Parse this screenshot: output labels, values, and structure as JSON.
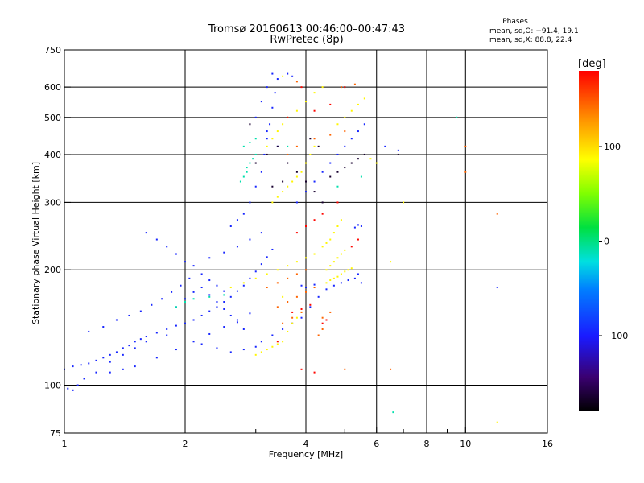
{
  "chart_data": {
    "type": "scatter",
    "title": "Tromsø 20160613 00:46:00–00:47:43",
    "subtitle": "RwPretec (8p)",
    "xlabel": "Frequency [MHz]",
    "ylabel": "Stationary phase Virtual Height [km]",
    "x_scale": "log",
    "y_scale": "log",
    "xlim": [
      1,
      16
    ],
    "ylim": [
      75,
      750
    ],
    "x_ticks": [
      1,
      2,
      4,
      6,
      8,
      10,
      16
    ],
    "x_tick_labels": [
      "1",
      "2",
      "4",
      "6",
      "8",
      "10",
      "16"
    ],
    "x_minor_ticks": [
      3,
      5,
      7,
      9
    ],
    "y_ticks": [
      75,
      100,
      200,
      300,
      400,
      500,
      600,
      750
    ],
    "y_tick_labels": [
      "75",
      "100",
      "200",
      "300",
      "400",
      "500",
      "600",
      "750"
    ],
    "grid": true,
    "stats": {
      "heading": "Phases",
      "line_o": "mean, sd,O: −91.4, 19.1",
      "line_x": "mean, sd,X: 88.8, 22.4"
    },
    "colorbar": {
      "label": "[deg]",
      "range": [
        -180,
        180
      ],
      "ticks": [
        100,
        0,
        -100
      ],
      "tick_labels": [
        "100",
        "0",
        "−100"
      ]
    },
    "series": [
      {
        "phase_deg": -95,
        "points": [
          [
            1.0,
            110
          ],
          [
            1.05,
            112
          ],
          [
            1.1,
            113
          ],
          [
            1.15,
            114
          ],
          [
            1.2,
            116
          ],
          [
            1.25,
            118
          ],
          [
            1.3,
            120
          ],
          [
            1.35,
            122
          ],
          [
            1.4,
            125
          ],
          [
            1.45,
            127
          ],
          [
            1.5,
            130
          ],
          [
            1.55,
            132
          ],
          [
            1.6,
            134
          ],
          [
            1.7,
            137
          ],
          [
            1.8,
            140
          ],
          [
            1.9,
            143
          ],
          [
            2.0,
            145
          ],
          [
            2.1,
            148
          ],
          [
            2.2,
            152
          ],
          [
            2.3,
            156
          ],
          [
            2.4,
            160
          ],
          [
            2.5,
            165
          ],
          [
            2.6,
            170
          ],
          [
            2.7,
            176
          ],
          [
            2.8,
            182
          ],
          [
            2.9,
            190
          ],
          [
            3.0,
            198
          ],
          [
            3.1,
            207
          ],
          [
            3.2,
            216
          ],
          [
            3.3,
            226
          ],
          [
            1.02,
            98
          ],
          [
            1.05,
            97
          ],
          [
            1.08,
            100
          ],
          [
            1.12,
            104
          ],
          [
            1.2,
            108
          ],
          [
            1.3,
            115
          ],
          [
            1.4,
            120
          ],
          [
            1.5,
            125
          ],
          [
            1.6,
            130
          ],
          [
            1.8,
            135
          ],
          [
            1.15,
            138
          ],
          [
            1.25,
            142
          ],
          [
            1.35,
            148
          ],
          [
            1.45,
            152
          ],
          [
            1.55,
            156
          ],
          [
            1.65,
            162
          ],
          [
            1.75,
            168
          ],
          [
            1.85,
            175
          ],
          [
            1.95,
            182
          ],
          [
            2.05,
            190
          ],
          [
            1.6,
            250
          ],
          [
            1.7,
            240
          ],
          [
            1.8,
            230
          ],
          [
            1.9,
            220
          ],
          [
            2.0,
            210
          ],
          [
            2.1,
            205
          ],
          [
            2.2,
            195
          ],
          [
            2.3,
            188
          ],
          [
            2.4,
            182
          ],
          [
            2.5,
            176
          ],
          [
            2.6,
            260
          ],
          [
            2.7,
            270
          ],
          [
            2.8,
            280
          ],
          [
            2.9,
            300
          ],
          [
            3.0,
            330
          ],
          [
            3.1,
            360
          ],
          [
            3.15,
            400
          ],
          [
            3.2,
            440
          ],
          [
            3.25,
            480
          ],
          [
            3.3,
            530
          ],
          [
            3.35,
            580
          ],
          [
            3.4,
            630
          ],
          [
            3.3,
            650
          ],
          [
            3.2,
            600
          ],
          [
            3.1,
            550
          ],
          [
            3.0,
            500
          ],
          [
            3.2,
            460
          ],
          [
            3.4,
            420
          ],
          [
            3.6,
            650
          ],
          [
            3.7,
            640
          ],
          [
            3.1,
            130
          ],
          [
            3.3,
            135
          ],
          [
            3.5,
            140
          ],
          [
            3.7,
            145
          ],
          [
            3.9,
            150
          ],
          [
            4.1,
            160
          ],
          [
            4.3,
            170
          ],
          [
            4.5,
            178
          ],
          [
            4.7,
            182
          ],
          [
            4.9,
            185
          ],
          [
            5.1,
            188
          ],
          [
            5.3,
            190
          ],
          [
            5.4,
            195
          ],
          [
            5.5,
            185
          ],
          [
            5.5,
            260
          ],
          [
            5.4,
            262
          ],
          [
            5.3,
            258
          ],
          [
            4.0,
            180
          ],
          [
            3.9,
            182
          ],
          [
            4.2,
            183
          ],
          [
            2.2,
            128
          ],
          [
            2.4,
            125
          ],
          [
            2.6,
            122
          ],
          [
            2.8,
            124
          ],
          [
            3.0,
            126
          ],
          [
            2.3,
            215
          ],
          [
            2.5,
            222
          ],
          [
            2.7,
            230
          ],
          [
            2.9,
            240
          ],
          [
            3.1,
            250
          ],
          [
            3.8,
            300
          ],
          [
            4.0,
            320
          ],
          [
            4.2,
            340
          ],
          [
            4.4,
            360
          ],
          [
            4.6,
            380
          ],
          [
            4.8,
            400
          ],
          [
            5.0,
            420
          ],
          [
            5.2,
            440
          ],
          [
            5.4,
            460
          ],
          [
            5.6,
            480
          ],
          [
            1.3,
            108
          ],
          [
            1.4,
            110
          ],
          [
            1.5,
            112
          ],
          [
            1.7,
            118
          ],
          [
            1.9,
            124
          ],
          [
            2.1,
            130
          ],
          [
            2.3,
            136
          ],
          [
            2.5,
            142
          ],
          [
            2.7,
            148
          ],
          [
            2.9,
            154
          ],
          [
            1.9,
            160
          ],
          [
            2.0,
            168
          ],
          [
            2.1,
            175
          ],
          [
            2.2,
            180
          ],
          [
            2.3,
            172
          ],
          [
            2.4,
            165
          ],
          [
            2.5,
            158
          ],
          [
            2.6,
            152
          ],
          [
            2.7,
            146
          ],
          [
            2.8,
            140
          ],
          [
            12.0,
            180
          ],
          [
            6.8,
            410
          ],
          [
            6.3,
            420
          ]
        ]
      },
      {
        "phase_deg": -10,
        "points": [
          [
            2.8,
            350
          ],
          [
            2.85,
            360
          ],
          [
            2.9,
            380
          ],
          [
            2.95,
            390
          ],
          [
            3.0,
            400
          ],
          [
            2.8,
            420
          ],
          [
            2.9,
            430
          ],
          [
            3.0,
            440
          ],
          [
            2.75,
            340
          ],
          [
            2.85,
            370
          ],
          [
            1.9,
            160
          ],
          [
            2.0,
            165
          ],
          [
            2.1,
            168
          ],
          [
            2.3,
            170
          ],
          [
            2.5,
            172
          ],
          [
            9.5,
            500
          ],
          [
            6.6,
            85
          ],
          [
            5.5,
            350
          ],
          [
            4.8,
            330
          ],
          [
            3.6,
            420
          ]
        ]
      },
      {
        "phase_deg": 90,
        "points": [
          [
            3.0,
            120
          ],
          [
            3.1,
            122
          ],
          [
            3.2,
            124
          ],
          [
            3.3,
            126
          ],
          [
            3.4,
            128
          ],
          [
            3.5,
            130
          ],
          [
            3.6,
            138
          ],
          [
            3.7,
            145
          ],
          [
            3.8,
            150
          ],
          [
            3.9,
            155
          ],
          [
            4.5,
            200
          ],
          [
            4.6,
            205
          ],
          [
            4.7,
            210
          ],
          [
            4.8,
            215
          ],
          [
            4.9,
            220
          ],
          [
            5.0,
            225
          ],
          [
            4.6,
            240
          ],
          [
            4.7,
            250
          ],
          [
            4.8,
            260
          ],
          [
            4.9,
            270
          ],
          [
            4.5,
            185
          ],
          [
            4.6,
            188
          ],
          [
            4.7,
            190
          ],
          [
            4.8,
            192
          ],
          [
            4.9,
            195
          ],
          [
            5.0,
            198
          ],
          [
            5.1,
            200
          ],
          [
            5.2,
            202
          ],
          [
            4.4,
            230
          ],
          [
            4.5,
            235
          ],
          [
            3.3,
            300
          ],
          [
            3.4,
            310
          ],
          [
            3.5,
            320
          ],
          [
            3.6,
            330
          ],
          [
            3.7,
            340
          ],
          [
            3.8,
            350
          ],
          [
            3.9,
            360
          ],
          [
            4.0,
            380
          ],
          [
            4.1,
            400
          ],
          [
            4.2,
            420
          ],
          [
            3.2,
            420
          ],
          [
            3.3,
            440
          ],
          [
            3.4,
            460
          ],
          [
            3.5,
            480
          ],
          [
            3.6,
            500
          ],
          [
            3.8,
            520
          ],
          [
            4.0,
            550
          ],
          [
            4.2,
            580
          ],
          [
            4.4,
            600
          ],
          [
            3.5,
            640
          ],
          [
            5.2,
            520
          ],
          [
            5.4,
            540
          ],
          [
            5.6,
            560
          ],
          [
            5.0,
            500
          ],
          [
            4.8,
            480
          ],
          [
            7.0,
            300
          ],
          [
            6.5,
            210
          ],
          [
            12.0,
            80
          ],
          [
            6.0,
            380
          ],
          [
            5.8,
            390
          ],
          [
            2.6,
            180
          ],
          [
            2.8,
            185
          ],
          [
            3.0,
            190
          ],
          [
            3.2,
            195
          ],
          [
            3.4,
            200
          ],
          [
            3.6,
            205
          ],
          [
            3.8,
            210
          ],
          [
            4.0,
            215
          ],
          [
            4.2,
            220
          ],
          [
            3.5,
            170
          ]
        ]
      },
      {
        "phase_deg": 145,
        "points": [
          [
            3.4,
            160
          ],
          [
            3.6,
            165
          ],
          [
            3.8,
            170
          ],
          [
            4.0,
            175
          ],
          [
            4.2,
            180
          ],
          [
            4.4,
            150
          ],
          [
            4.6,
            155
          ],
          [
            3.6,
            400
          ],
          [
            3.8,
            420
          ],
          [
            4.2,
            440
          ],
          [
            3.2,
            180
          ],
          [
            3.4,
            185
          ],
          [
            3.6,
            190
          ],
          [
            3.8,
            195
          ],
          [
            4.0,
            200
          ],
          [
            4.4,
            140
          ],
          [
            4.3,
            135
          ],
          [
            3.5,
            145
          ],
          [
            3.7,
            150
          ],
          [
            3.9,
            155
          ],
          [
            5.0,
            110
          ],
          [
            6.5,
            110
          ],
          [
            12.0,
            280
          ],
          [
            10.0,
            360
          ],
          [
            10.0,
            420
          ],
          [
            4.9,
            600
          ],
          [
            5.3,
            610
          ],
          [
            3.8,
            620
          ],
          [
            4.6,
            450
          ],
          [
            5.0,
            460
          ]
        ]
      },
      {
        "phase_deg": 178,
        "points": [
          [
            4.4,
            145
          ],
          [
            4.5,
            148
          ],
          [
            3.7,
            155
          ],
          [
            3.9,
            158
          ],
          [
            4.1,
            162
          ],
          [
            3.8,
            250
          ],
          [
            4.0,
            260
          ],
          [
            4.2,
            270
          ],
          [
            4.4,
            280
          ],
          [
            5.0,
            600
          ],
          [
            3.6,
            500
          ],
          [
            4.2,
            520
          ],
          [
            4.6,
            540
          ],
          [
            3.4,
            130
          ],
          [
            3.9,
            110
          ],
          [
            4.2,
            108
          ],
          [
            5.4,
            240
          ],
          [
            5.2,
            230
          ],
          [
            4.8,
            300
          ],
          [
            3.9,
            600
          ]
        ]
      },
      {
        "phase_deg": -165,
        "points": [
          [
            3.2,
            400
          ],
          [
            3.4,
            420
          ],
          [
            3.6,
            380
          ],
          [
            3.8,
            360
          ],
          [
            4.0,
            340
          ],
          [
            4.2,
            320
          ],
          [
            4.4,
            300
          ],
          [
            3.0,
            380
          ],
          [
            4.6,
            350
          ],
          [
            4.8,
            360
          ],
          [
            5.0,
            370
          ],
          [
            5.2,
            380
          ],
          [
            5.4,
            390
          ],
          [
            5.6,
            400
          ],
          [
            3.3,
            330
          ],
          [
            3.5,
            340
          ],
          [
            4.1,
            440
          ],
          [
            4.3,
            420
          ],
          [
            6.8,
            400
          ],
          [
            2.9,
            480
          ]
        ]
      }
    ]
  }
}
